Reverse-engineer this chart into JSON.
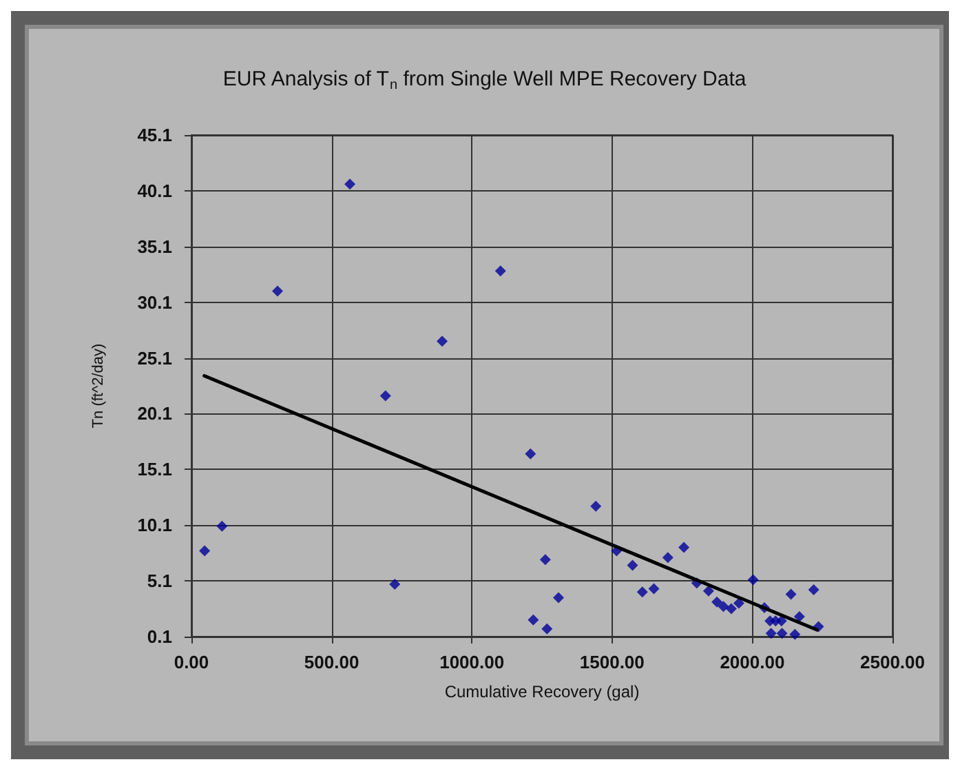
{
  "chart_data": {
    "type": "scatter",
    "title": "EUR Analysis of T$_{n}$ from Single Well MPE Recovery Data",
    "xlabel": "Cumulative Recovery (gal)",
    "ylabel": "Tn (ft^2/day)",
    "xlim": [
      0,
      2500
    ],
    "xticks": [
      {
        "value": 0,
        "label": "0.00"
      },
      {
        "value": 500,
        "label": "500.00"
      },
      {
        "value": 1000,
        "label": "1000.00"
      },
      {
        "value": 1500,
        "label": "1500.00"
      },
      {
        "value": 2000,
        "label": "2000.00"
      },
      {
        "value": 2500,
        "label": "2500.00"
      }
    ],
    "ylim": [
      0.1,
      45.1
    ],
    "yticks": [
      0.1,
      5.1,
      10.1,
      15.1,
      20.1,
      25.1,
      30.1,
      35.1,
      40.1,
      45.1
    ],
    "grid": true,
    "series": [
      {
        "color": "#000099",
        "marker": "diamond",
        "x": [
          47,
          109,
          307,
          565,
          692,
          725,
          894,
          1102,
          1209,
          1219,
          1262,
          1268,
          1309,
          1442,
          1516,
          1573,
          1608,
          1649,
          1699,
          1756,
          1802,
          1844,
          1874,
          1897,
          1925,
          1952,
          2003,
          2043,
          2063,
          2083,
          2104,
          2067,
          2106,
          2144,
          2152,
          2138,
          2168,
          2219,
          2236
        ],
        "values": [
          7.8,
          10.0,
          31.1,
          40.7,
          21.7,
          4.8,
          26.6,
          32.9,
          16.5,
          1.6,
          7.0,
          0.8,
          3.6,
          11.8,
          7.8,
          6.5,
          4.1,
          4.4,
          7.2,
          8.1,
          4.9,
          4.2,
          3.2,
          2.8,
          2.6,
          3.1,
          5.2,
          2.7,
          1.5,
          1.5,
          1.5,
          0.4,
          0.4,
          null,
          0.3,
          3.9,
          1.9,
          4.3,
          1.0
        ]
      },
      {
        "type": "line",
        "color": "#000000",
        "marker": "none",
        "line_style": "solid",
        "x": [
          46,
          2231
        ],
        "values": [
          23.5,
          0.7
        ]
      }
    ]
  }
}
